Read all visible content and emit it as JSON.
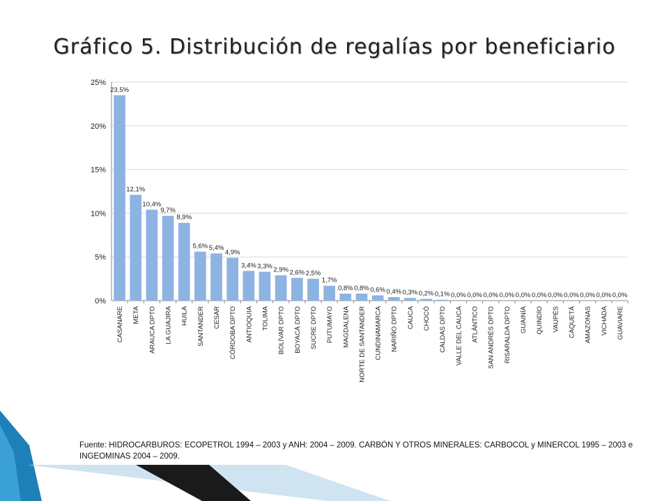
{
  "title": "Gráfico 5. Distribución de regalías por beneficiario",
  "source": "Fuente: HIDROCARBUROS: ECOPETROL 1994 – 2003 y ANH: 2004 – 2009. CARBÓN Y OTROS MINERALES: CARBOCOL y MINERCOL 1995 – 2003 e INGEOMINAS 2004 – 2009.",
  "colors": {
    "bar": "#8db3e2",
    "grid": "#d9d9d9",
    "axis": "#888888",
    "deco_blue": "#1f7fb8",
    "deco_dark": "#1a1a1a"
  },
  "chart_data": {
    "type": "bar",
    "categories": [
      "CASANARE",
      "META",
      "ARAUCA DPTO",
      "LA GUAJIRA",
      "HUILA",
      "SANTANDER",
      "CESAR",
      "CÓRDOBA DPTO",
      "ANTIOQUIA",
      "TOLIMA",
      "BOLÍVAR DPTO",
      "BOYACÁ DPTO",
      "SUCRE DPTO",
      "PUTUMAYO",
      "MAGDALENA",
      "NORTE DE SANTANDER",
      "CUNDINAMARCA",
      "NARIÑO DPTO",
      "CAUCA",
      "CHOCÓ",
      "CALDAS DPTO",
      "VALLE DEL CAUCA",
      "ATLÁNTICO",
      "SAN ANDRÉS DPTO",
      "RISARALDA DPTO",
      "GUAINÍA",
      "QUINDÍO",
      "VAUPÉS",
      "CAQUETÁ",
      "AMAZONAS",
      "VICHADA",
      "GUAVIARE"
    ],
    "values": [
      23.5,
      12.1,
      10.4,
      9.7,
      8.9,
      5.6,
      5.4,
      4.9,
      3.4,
      3.3,
      2.9,
      2.6,
      2.5,
      1.7,
      0.8,
      0.8,
      0.6,
      0.4,
      0.3,
      0.2,
      0.1,
      0.0,
      0.0,
      0.0,
      0.0,
      0.0,
      0.0,
      0.0,
      0.0,
      0.0,
      0.0,
      0.0
    ],
    "data_labels": [
      "23,5%",
      "12,1%",
      "10,4%",
      "9,7%",
      "8,9%",
      "5,6%",
      "5,4%",
      "4,9%",
      "3,4%",
      "3,3%",
      "2,9%",
      "2,6%",
      "2,5%",
      "1,7%",
      "0,8%",
      "0,8%",
      "0,6%",
      "0,4%",
      "0,3%",
      "0,2%",
      "0,1%",
      "0,0%",
      "0,0%",
      "0,0%",
      "0,0%",
      "0,0%",
      "0,0%",
      "0,0%",
      "0,0%",
      "0,0%",
      "0,0%",
      "0,0%"
    ],
    "yticks": [
      "0%",
      "5%",
      "10%",
      "15%",
      "20%",
      "25%"
    ],
    "ylim": [
      0,
      25
    ],
    "grid": true,
    "legend": "none"
  }
}
